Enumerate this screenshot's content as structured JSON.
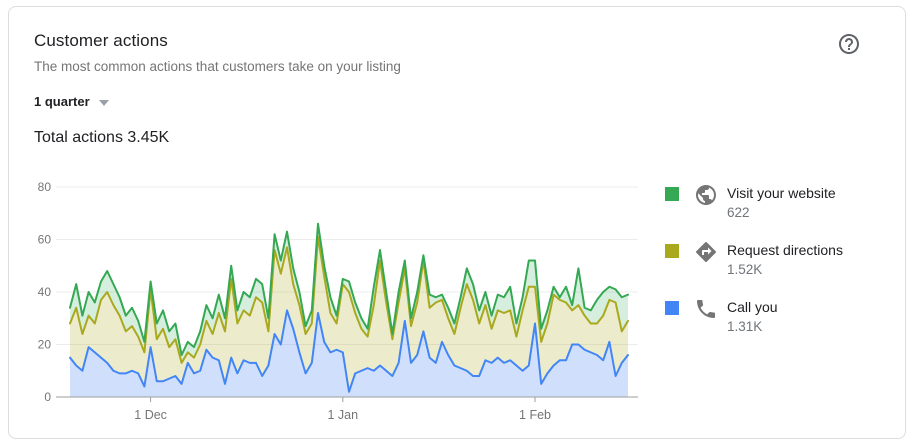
{
  "card": {
    "title": "Customer actions",
    "subtitle": "The most common actions that customers take on your listing",
    "period_selector": {
      "value": "1 quarter"
    },
    "total_label": "Total actions 3.45K"
  },
  "legend": [
    {
      "name": "Visit your website",
      "value": "622",
      "color": "#34a853",
      "icon": "globe-icon"
    },
    {
      "name": "Request directions",
      "value": "1.52K",
      "color": "#aaa81d",
      "icon": "directions-icon"
    },
    {
      "name": "Call you",
      "value": "1.31K",
      "color": "#4285f4",
      "icon": "phone-icon"
    }
  ],
  "chart_data": {
    "type": "area",
    "stacked": true,
    "title": "Customer actions over 1 quarter (daily)",
    "ylim": [
      0,
      80
    ],
    "y_ticks": [
      0,
      20,
      40,
      60,
      80
    ],
    "x_tick_labels": [
      "1 Dec",
      "1 Jan",
      "1 Feb"
    ],
    "x_tick_indices": [
      13,
      44,
      75
    ],
    "grid": "horizontal",
    "legend_position": "right",
    "axis_color": "#9e9e9e",
    "grid_color": "#ececec",
    "tick_label_color": "#757575",
    "series": [
      {
        "name": "Call you",
        "line_color": "#4285f4",
        "fill_color": "rgba(66,133,244,0.25)",
        "values": [
          15,
          12,
          10,
          19,
          17,
          15,
          13,
          10,
          9,
          9,
          10,
          9,
          4,
          19,
          6,
          6,
          7,
          8,
          5,
          13,
          9,
          10,
          18,
          15,
          14,
          5,
          15,
          9,
          14,
          13,
          13,
          8,
          12,
          24,
          20,
          33,
          26,
          17,
          9,
          13,
          32,
          21,
          17,
          18,
          17,
          2,
          9,
          10,
          11,
          10,
          12,
          10,
          8,
          13,
          29,
          13,
          16,
          25,
          15,
          13,
          21,
          16,
          12,
          11,
          10,
          8,
          8,
          14,
          13,
          15,
          13,
          14,
          12,
          10,
          12,
          28,
          5,
          9,
          12,
          14,
          14,
          20,
          20,
          18,
          17,
          16,
          14,
          21,
          8,
          13,
          16
        ]
      },
      {
        "name": "Request directions",
        "line_color": "#aaa81d",
        "fill_color": "rgba(170,168,29,0.22)",
        "values": [
          13,
          22,
          14,
          12,
          11,
          22,
          27,
          25,
          22,
          16,
          17,
          14,
          13,
          22,
          16,
          20,
          12,
          14,
          8,
          4,
          6,
          10,
          11,
          9,
          18,
          20,
          30,
          19,
          19,
          18,
          25,
          28,
          13,
          32,
          27,
          24,
          17,
          18,
          15,
          15,
          29,
          25,
          15,
          10,
          26,
          38,
          23,
          16,
          12,
          25,
          40,
          26,
          14,
          23,
          20,
          14,
          20,
          27,
          19,
          23,
          16,
          14,
          12,
          23,
          33,
          29,
          20,
          21,
          13,
          18,
          19,
          19,
          11,
          23,
          30,
          14,
          16,
          19,
          27,
          23,
          22,
          13,
          15,
          13,
          11,
          12,
          17,
          16,
          28,
          12,
          13
        ]
      },
      {
        "name": "Visit your website",
        "line_color": "#34a853",
        "fill_color": "rgba(52,168,83,0.20)",
        "values": [
          6,
          9,
          7,
          9,
          8,
          7,
          8,
          8,
          7,
          6,
          7,
          6,
          4,
          3,
          6,
          7,
          6,
          6,
          3,
          4,
          4,
          5,
          6,
          6,
          7,
          5,
          5,
          5,
          7,
          7,
          7,
          7,
          5,
          6,
          5,
          6,
          6,
          5,
          3,
          5,
          5,
          4,
          6,
          3,
          2,
          4,
          4,
          4,
          3,
          7,
          4,
          4,
          2,
          4,
          3,
          3,
          4,
          2,
          5,
          2,
          2,
          4,
          4,
          4,
          6,
          6,
          5,
          5,
          5,
          6,
          6,
          9,
          5,
          5,
          10,
          10,
          5,
          5,
          3,
          1,
          6,
          2,
          14,
          3,
          5,
          9,
          9,
          5,
          5,
          13,
          10
        ]
      }
    ]
  }
}
